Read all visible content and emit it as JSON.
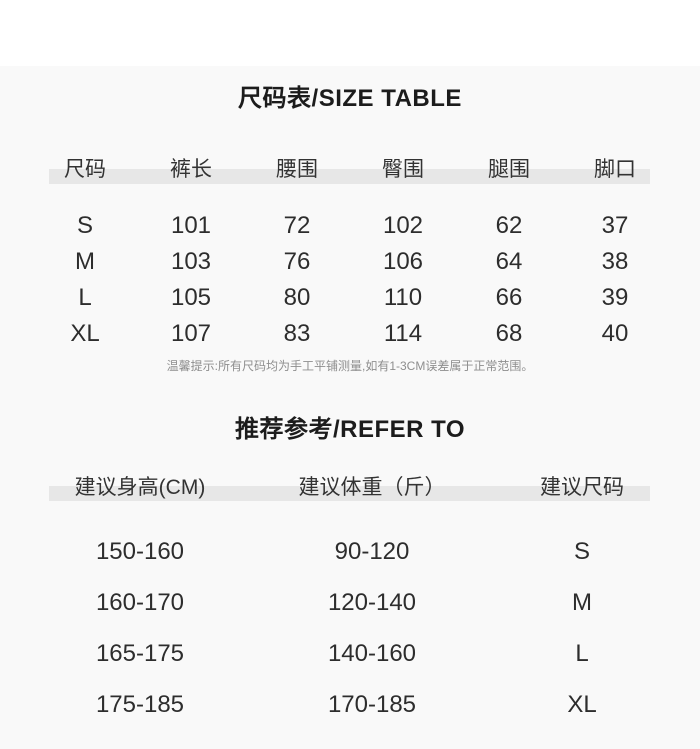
{
  "theme": {
    "background": "#f9f9f9",
    "header_band": "#e7e7e7",
    "text": "#2d2d2d",
    "note_text": "#8e8e8e"
  },
  "size_table": {
    "title": "尺码表/SIZE TABLE",
    "columns": [
      "尺码",
      "裤长",
      "腰围",
      "臀围",
      "腿围",
      "脚口"
    ],
    "rows": [
      [
        "S",
        "101",
        "72",
        "102",
        "62",
        "37"
      ],
      [
        "M",
        "103",
        "76",
        "106",
        "64",
        "38"
      ],
      [
        "L",
        "105",
        "80",
        "110",
        "66",
        "39"
      ],
      [
        "XL",
        "107",
        "83",
        "114",
        "68",
        "40"
      ]
    ],
    "note": "温馨提示:所有尺码均为手工平铺测量,如有1-3CM误差属于正常范围。"
  },
  "refer_table": {
    "title": "推荐参考/REFER TO",
    "columns": [
      "建议身高(CM)",
      "建议体重（斤）",
      "建议尺码"
    ],
    "rows": [
      [
        "150-160",
        "90-120",
        "S"
      ],
      [
        "160-170",
        "120-140",
        "M"
      ],
      [
        "165-175",
        "140-160",
        "L"
      ],
      [
        "175-185",
        "170-185",
        "XL"
      ]
    ]
  }
}
